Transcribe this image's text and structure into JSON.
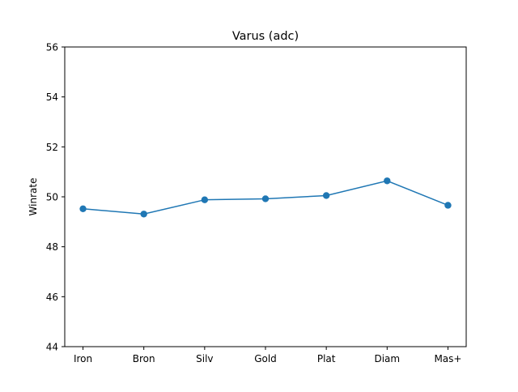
{
  "chart_data": {
    "type": "line",
    "title": "Varus (adc)",
    "xlabel": "",
    "ylabel": "Winrate",
    "categories": [
      "Iron",
      "Bron",
      "Silv",
      "Gold",
      "Plat",
      "Diam",
      "Mas+"
    ],
    "series": [
      {
        "values": [
          49.52,
          49.31,
          49.88,
          49.92,
          50.05,
          50.64,
          49.66
        ],
        "color": "#1f77b4",
        "marker": "circle"
      }
    ],
    "ylim": [
      44,
      56
    ],
    "yticks": [
      44,
      46,
      48,
      50,
      52,
      54,
      56
    ],
    "grid": false,
    "legend": "none"
  }
}
